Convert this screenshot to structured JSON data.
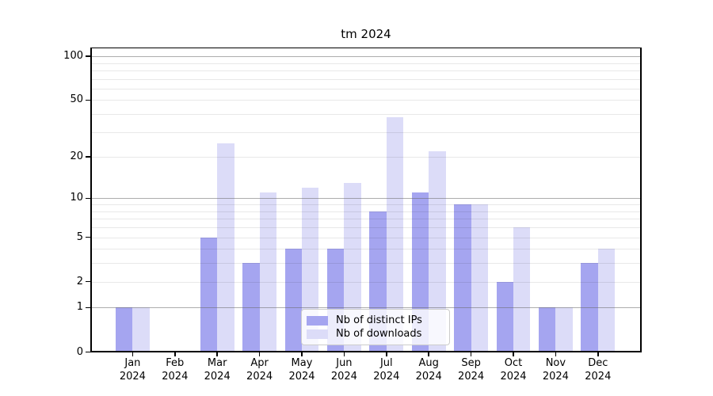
{
  "title": "tm 2024",
  "chart_data": {
    "type": "bar",
    "title": "tm 2024",
    "categories": [
      "Jan 2024",
      "Feb 2024",
      "Mar 2024",
      "Apr 2024",
      "May 2024",
      "Jun 2024",
      "Jul 2024",
      "Aug 2024",
      "Sep 2024",
      "Oct 2024",
      "Nov 2024",
      "Dec 2024"
    ],
    "series": [
      {
        "name": "Nb of distinct IPs",
        "color": "#a5a5f0",
        "values": [
          1,
          0,
          5,
          3,
          4,
          4,
          8,
          11,
          9,
          2,
          1,
          3
        ]
      },
      {
        "name": "Nb of downloads",
        "color": "#dcdcf8",
        "values": [
          1,
          0,
          25,
          11,
          12,
          13,
          38,
          22,
          9,
          6,
          1,
          4
        ]
      }
    ],
    "xlabel": "",
    "ylabel": "",
    "yscale": "log1p",
    "ylim": [
      0,
      116
    ],
    "yticks": [
      0,
      1,
      2,
      5,
      10,
      20,
      50,
      100
    ],
    "major_gridlines": [
      1,
      10,
      100
    ],
    "minor_gridlines": [
      2,
      3,
      4,
      5,
      6,
      7,
      8,
      9,
      20,
      30,
      40,
      50,
      60,
      70,
      80,
      90
    ],
    "grid": true,
    "legend_position": "lower center"
  }
}
